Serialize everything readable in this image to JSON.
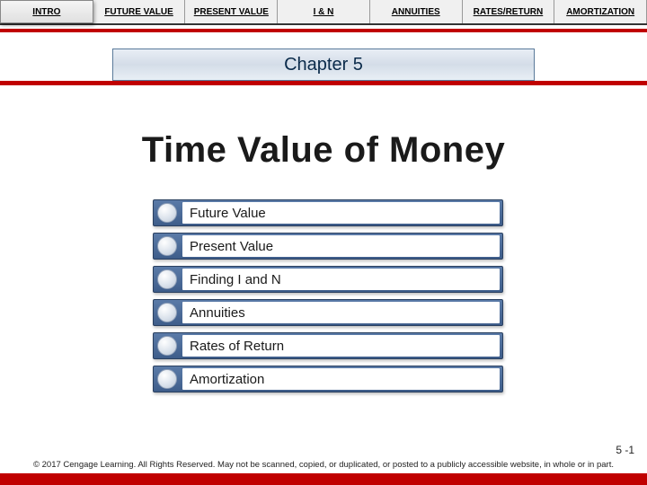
{
  "nav": {
    "tabs": [
      {
        "label": "INTRO"
      },
      {
        "label": "FUTURE VALUE"
      },
      {
        "label": "PRESENT VALUE"
      },
      {
        "label": "I & N"
      },
      {
        "label": "ANNUITIES"
      },
      {
        "label": "RATES/RETURN"
      },
      {
        "label": "AMORTIZATION"
      }
    ]
  },
  "chapter": "Chapter 5",
  "title": "Time Value of Money",
  "topics": [
    {
      "label": "Future Value"
    },
    {
      "label": "Present Value"
    },
    {
      "label": "Finding I and N"
    },
    {
      "label": "Annuities"
    },
    {
      "label": "Rates of Return"
    },
    {
      "label": "Amortization"
    }
  ],
  "page_number": "5 -1",
  "footer": "© 2017 Cengage Learning. All Rights Reserved. May not be scanned, copied, or duplicated, or posted to a publicly accessible website, in whole or in part.",
  "colors": {
    "accent_red": "#c00000",
    "topic_bar_top": "#5b7ba8",
    "topic_bar_bottom": "#3e5d8a",
    "chapter_bg": "#e8eef5",
    "chapter_border": "#5a7a9a"
  }
}
